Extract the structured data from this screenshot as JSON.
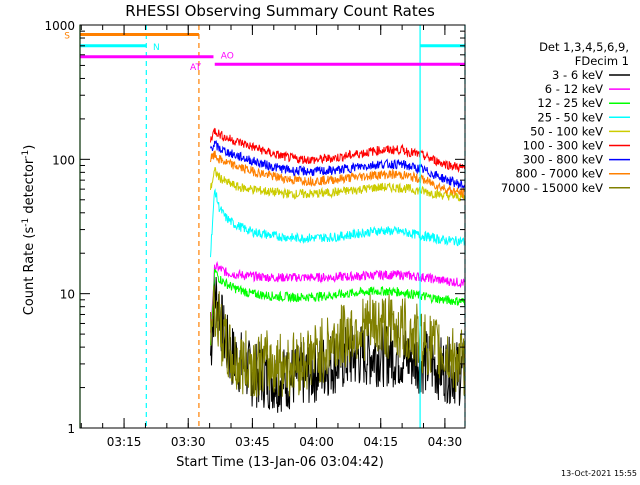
{
  "chart_data": {
    "type": "line",
    "title": "RHESSI Observing Summary Count Rates",
    "xlabel": "Start Time (13-Jan-06 03:04:42)",
    "ylabel_prefix": "Count Rate (s",
    "ylabel_sup1": "-1",
    "ylabel_mid": " detector",
    "ylabel_sup2": "-1",
    "ylabel_suffix": ")",
    "y_scale": "log",
    "ylim": [
      1,
      1000
    ],
    "xlim_minutes": [
      0,
      90
    ],
    "x_ticks": [
      {
        "minute": 10.3,
        "label": "03:15"
      },
      {
        "minute": 25.3,
        "label": "03:30"
      },
      {
        "minute": 40.3,
        "label": "03:45"
      },
      {
        "minute": 55.3,
        "label": "04:00"
      },
      {
        "minute": 70.3,
        "label": "04:15"
      },
      {
        "minute": 85.3,
        "label": "04:30"
      }
    ],
    "y_ticks": [
      {
        "value": 1,
        "label": "1"
      },
      {
        "value": 10,
        "label": "10"
      },
      {
        "value": 100,
        "label": "100"
      },
      {
        "value": 1000,
        "label": "1000"
      }
    ],
    "legend": {
      "position": "right",
      "header1": "Det 1,3,4,5,6,9,",
      "header2": "FDecim 1"
    },
    "series": [
      {
        "name": "3 - 6 keV",
        "color": "#000000",
        "points": [
          [
            30.5,
            3.5
          ],
          [
            31.5,
            10.5
          ],
          [
            32.5,
            8
          ],
          [
            33.5,
            5
          ],
          [
            35,
            3.5
          ],
          [
            38,
            3
          ],
          [
            40,
            2.5
          ],
          [
            42,
            2.5
          ],
          [
            46,
            2.3
          ],
          [
            50,
            2.4
          ],
          [
            54,
            2.6
          ],
          [
            58,
            3
          ],
          [
            62,
            3.3
          ],
          [
            66,
            3.5
          ],
          [
            70,
            3.6
          ],
          [
            74,
            3.5
          ],
          [
            78,
            3.3
          ],
          [
            82,
            3
          ],
          [
            86,
            2.7
          ],
          [
            90,
            2.5
          ]
        ]
      },
      {
        "name": "6 - 12 keV",
        "color": "#ff00ff",
        "points": [
          [
            30.5,
            5
          ],
          [
            31.5,
            16
          ],
          [
            32.5,
            15.5
          ],
          [
            34,
            14.5
          ],
          [
            36,
            14
          ],
          [
            40,
            13.5
          ],
          [
            45,
            13.2
          ],
          [
            50,
            13.2
          ],
          [
            55,
            13.2
          ],
          [
            60,
            13.3
          ],
          [
            65,
            13.5
          ],
          [
            70,
            13.8
          ],
          [
            75,
            13.8
          ],
          [
            80,
            13.3
          ],
          [
            85,
            12.5
          ],
          [
            90,
            12
          ]
        ]
      },
      {
        "name": "12 - 25 keV",
        "color": "#00ff00",
        "points": [
          [
            30.5,
            4
          ],
          [
            31.5,
            15
          ],
          [
            32.5,
            13
          ],
          [
            34,
            12
          ],
          [
            36,
            11
          ],
          [
            40,
            10
          ],
          [
            45,
            9.6
          ],
          [
            50,
            9.4
          ],
          [
            55,
            9.5
          ],
          [
            60,
            9.8
          ],
          [
            65,
            10.2
          ],
          [
            70,
            10.5
          ],
          [
            75,
            10.3
          ],
          [
            80,
            9.6
          ],
          [
            85,
            9
          ],
          [
            90,
            8.7
          ]
        ]
      },
      {
        "name": "25 - 50 keV",
        "color": "#00ffff",
        "points": [
          [
            30.5,
            20
          ],
          [
            31.5,
            60
          ],
          [
            32.5,
            44
          ],
          [
            34,
            37
          ],
          [
            36,
            33
          ],
          [
            40,
            29
          ],
          [
            45,
            27
          ],
          [
            50,
            26
          ],
          [
            55,
            26
          ],
          [
            60,
            26.5
          ],
          [
            65,
            28
          ],
          [
            70,
            29.5
          ],
          [
            75,
            29
          ],
          [
            80,
            27
          ],
          [
            85,
            25
          ],
          [
            90,
            24.5
          ]
        ]
      },
      {
        "name": "50 - 100 keV",
        "color": "#cccc00",
        "points": [
          [
            30.5,
            60
          ],
          [
            31.5,
            82
          ],
          [
            32.5,
            74
          ],
          [
            34,
            68
          ],
          [
            37,
            62
          ],
          [
            40,
            60
          ],
          [
            45,
            57
          ],
          [
            50,
            55
          ],
          [
            55,
            55.5
          ],
          [
            60,
            57
          ],
          [
            65,
            59.5
          ],
          [
            70,
            62
          ],
          [
            75,
            61.5
          ],
          [
            80,
            58
          ],
          [
            85,
            54
          ],
          [
            90,
            52
          ]
        ]
      },
      {
        "name": "100 - 300 keV",
        "color": "#ff0000",
        "points": [
          [
            30.5,
            140
          ],
          [
            31.5,
            165
          ],
          [
            32.5,
            155
          ],
          [
            34,
            145
          ],
          [
            36,
            138
          ],
          [
            40,
            125
          ],
          [
            45,
            110
          ],
          [
            50,
            101
          ],
          [
            55,
            99
          ],
          [
            60,
            103
          ],
          [
            65,
            110
          ],
          [
            70,
            117
          ],
          [
            75,
            118
          ],
          [
            80,
            107
          ],
          [
            85,
            93
          ],
          [
            90,
            85
          ]
        ]
      },
      {
        "name": "300 - 800 keV",
        "color": "#0000ff",
        "points": [
          [
            30.5,
            120
          ],
          [
            31.5,
            130
          ],
          [
            32.5,
            120
          ],
          [
            34,
            115
          ],
          [
            36,
            108
          ],
          [
            40,
            98
          ],
          [
            45,
            88
          ],
          [
            50,
            82
          ],
          [
            55,
            81
          ],
          [
            60,
            83
          ],
          [
            65,
            88
          ],
          [
            70,
            92
          ],
          [
            75,
            92
          ],
          [
            80,
            84
          ],
          [
            85,
            72
          ],
          [
            90,
            63
          ]
        ]
      },
      {
        "name": "800 - 7000 keV",
        "color": "#ff8000",
        "points": [
          [
            30.5,
            100
          ],
          [
            31.5,
            108
          ],
          [
            32.5,
            100
          ],
          [
            34,
            95
          ],
          [
            36,
            90
          ],
          [
            40,
            82
          ],
          [
            45,
            75
          ],
          [
            50,
            70
          ],
          [
            55,
            69
          ],
          [
            60,
            71
          ],
          [
            65,
            74
          ],
          [
            70,
            77
          ],
          [
            75,
            77
          ],
          [
            80,
            71
          ],
          [
            85,
            61
          ],
          [
            90,
            55
          ]
        ]
      },
      {
        "name": "7000 - 15000 keV",
        "color": "#808000",
        "points": [
          [
            30.5,
            6
          ],
          [
            31.5,
            8
          ],
          [
            32.5,
            6
          ],
          [
            34,
            4
          ],
          [
            36,
            3
          ],
          [
            40,
            3
          ],
          [
            45,
            3
          ],
          [
            50,
            3
          ],
          [
            55,
            3.5
          ],
          [
            60,
            4.5
          ],
          [
            65,
            5.5
          ],
          [
            70,
            5.8
          ],
          [
            75,
            5.5
          ],
          [
            80,
            4.5
          ],
          [
            85,
            3.5
          ],
          [
            90,
            3
          ]
        ]
      }
    ],
    "attenuator_lines": [
      {
        "minute": 0,
        "color": "#00ff00",
        "style": "solid"
      },
      {
        "minute": 15.5,
        "color": "#00ffff",
        "style": "dashed"
      },
      {
        "minute": 27.8,
        "color": "#ff8000",
        "style": "dashed"
      },
      {
        "minute": 79.5,
        "color": "#00ffff",
        "style": "solid"
      },
      {
        "minute": 90,
        "color": "#00ffff",
        "style": "dashed"
      }
    ],
    "flag_bars": [
      {
        "label": "S",
        "color": "#ff8000",
        "start": 0,
        "end": 27.8,
        "value": 850
      },
      {
        "label": "N",
        "color": "#00ffff",
        "start": 0,
        "end": 15.5,
        "value": 700
      },
      {
        "label": "",
        "color": "#00ffff",
        "start": 79.5,
        "end": 90,
        "value": 700
      },
      {
        "label": "AT",
        "color": "#ff00ff",
        "start": 0,
        "end": 31.2,
        "value": 580
      },
      {
        "label": "AO",
        "color": "#ff00ff",
        "start": 31.5,
        "end": 90,
        "value": 510
      }
    ],
    "timestamp": "13-Oct-2021 15:55"
  }
}
